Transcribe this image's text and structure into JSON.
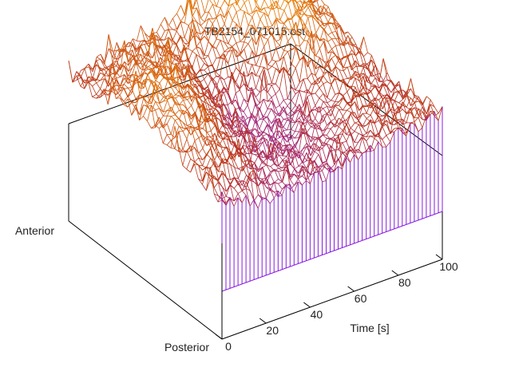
{
  "chart_data": {
    "type": "surface",
    "title": "TB2154_071015.ost",
    "xlabel": "Time [s]",
    "x_ticks": [
      "0",
      "20",
      "40",
      "60",
      "80",
      "100"
    ],
    "xlim": [
      0,
      100
    ],
    "y_end_labels": {
      "near": "Posterior",
      "far": "Anterior"
    },
    "rendering": "wireframe mesh with vertical fence lines on the near face",
    "colors": {
      "axis": "#000000",
      "low": "#8a1be0",
      "mid": "#b8321a",
      "high": "#f08c00"
    },
    "surface_profile": {
      "description": "approximate surface height (0 = low/purple, 1 = high/orange) sampled along the posterior→anterior axis (rows, 0 = posterior) and time axis (cols, 0 s to 100 s)",
      "y_samples": 7,
      "x_samples": 11,
      "heights": [
        [
          0.42,
          0.35,
          0.28,
          0.3,
          0.34,
          0.33,
          0.37,
          0.42,
          0.46,
          0.5,
          0.52
        ],
        [
          0.52,
          0.55,
          0.45,
          0.34,
          0.3,
          0.32,
          0.38,
          0.48,
          0.52,
          0.5,
          0.48
        ],
        [
          0.62,
          0.72,
          0.6,
          0.4,
          0.28,
          0.25,
          0.32,
          0.42,
          0.5,
          0.48,
          0.42
        ],
        [
          0.7,
          0.82,
          0.75,
          0.52,
          0.3,
          0.24,
          0.3,
          0.45,
          0.62,
          0.6,
          0.5
        ],
        [
          0.66,
          0.78,
          0.8,
          0.66,
          0.45,
          0.4,
          0.52,
          0.74,
          0.88,
          0.8,
          0.62
        ],
        [
          0.55,
          0.64,
          0.7,
          0.68,
          0.6,
          0.62,
          0.78,
          0.96,
          1.0,
          0.88,
          0.7
        ],
        [
          0.48,
          0.54,
          0.6,
          0.62,
          0.66,
          0.74,
          0.86,
          0.98,
          0.96,
          0.84,
          0.66
        ]
      ]
    }
  }
}
